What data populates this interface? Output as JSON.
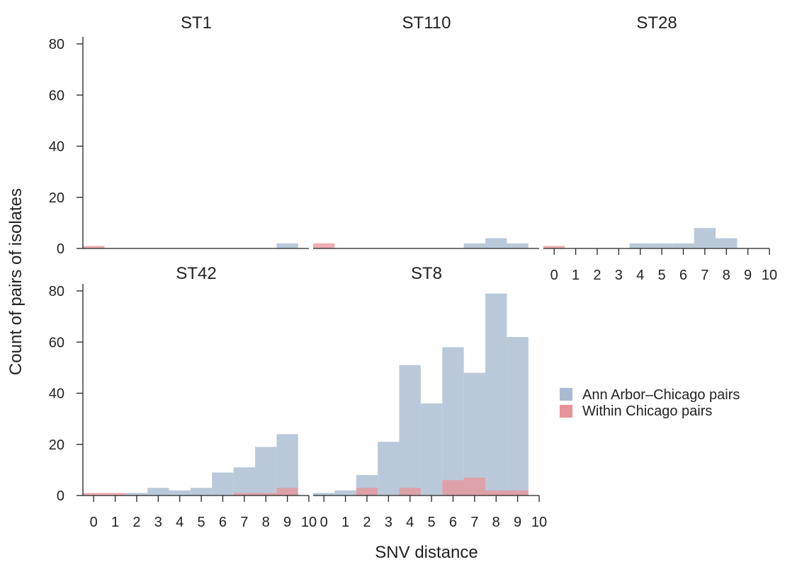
{
  "figure": {
    "ylabel": "Count of pairs of isolates",
    "xlabel": "SNV distance"
  },
  "legend": {
    "placement": "right",
    "items": [
      {
        "label": "Ann Arbor–Chicago pairs",
        "color": "#a9bbd0"
      },
      {
        "label": "Within Chicago pairs",
        "color": "#e8939a"
      }
    ]
  },
  "colors": {
    "ann_arbor_chicago": "#a9bbd0",
    "within_chicago": "#e8939a"
  },
  "chart_data": [
    {
      "type": "bar",
      "title": "ST1",
      "categories": [
        0,
        1,
        2,
        3,
        4,
        5,
        6,
        7,
        8,
        9
      ],
      "series": [
        {
          "name": "Ann Arbor–Chicago pairs",
          "values": [
            0,
            0,
            0,
            0,
            0,
            0,
            0,
            0,
            0,
            2
          ]
        },
        {
          "name": "Within Chicago pairs",
          "values": [
            1,
            0,
            0,
            0,
            0,
            0,
            0,
            0,
            0,
            0
          ]
        }
      ],
      "xlim": [
        -0.5,
        10
      ],
      "ylim": [
        0,
        80
      ],
      "grid": false
    },
    {
      "type": "bar",
      "title": "ST110",
      "categories": [
        0,
        1,
        2,
        3,
        4,
        5,
        6,
        7,
        8,
        9
      ],
      "series": [
        {
          "name": "Ann Arbor–Chicago pairs",
          "values": [
            0,
            0,
            0,
            0,
            0,
            0,
            0,
            2,
            4,
            2
          ]
        },
        {
          "name": "Within Chicago pairs",
          "values": [
            2,
            0,
            0,
            0,
            0,
            0,
            0,
            0,
            0,
            0
          ]
        }
      ],
      "xlim": [
        -0.5,
        10
      ],
      "ylim": [
        0,
        80
      ],
      "grid": false
    },
    {
      "type": "bar",
      "title": "ST28",
      "categories": [
        0,
        1,
        2,
        3,
        4,
        5,
        6,
        7,
        8,
        9
      ],
      "series": [
        {
          "name": "Ann Arbor–Chicago pairs",
          "values": [
            0,
            0,
            0,
            0,
            2,
            2,
            2,
            8,
            4,
            0
          ]
        },
        {
          "name": "Within Chicago pairs",
          "values": [
            1,
            0,
            0,
            0,
            0,
            0,
            0,
            0,
            0,
            0
          ]
        }
      ],
      "xticks": [
        0,
        1,
        2,
        3,
        4,
        5,
        6,
        7,
        8,
        9,
        10
      ],
      "xlim": [
        -0.5,
        10
      ],
      "ylim": [
        0,
        80
      ],
      "grid": false
    },
    {
      "type": "bar",
      "title": "ST42",
      "categories": [
        0,
        1,
        2,
        3,
        4,
        5,
        6,
        7,
        8,
        9
      ],
      "series": [
        {
          "name": "Ann Arbor–Chicago pairs",
          "values": [
            0,
            0,
            1,
            3,
            2,
            3,
            9,
            11,
            19,
            24
          ]
        },
        {
          "name": "Within Chicago pairs",
          "values": [
            1,
            1,
            0,
            0,
            0,
            0,
            0,
            1,
            1,
            3
          ]
        }
      ],
      "xticks": [
        0,
        1,
        2,
        3,
        4,
        5,
        6,
        7,
        8,
        9,
        10
      ],
      "xlim": [
        -0.5,
        10
      ],
      "ylim": [
        0,
        80
      ],
      "grid": false
    },
    {
      "type": "bar",
      "title": "ST8",
      "categories": [
        0,
        1,
        2,
        3,
        4,
        5,
        6,
        7,
        8,
        9
      ],
      "series": [
        {
          "name": "Ann Arbor–Chicago pairs",
          "values": [
            1,
            2,
            8,
            21,
            51,
            36,
            58,
            48,
            79,
            62
          ]
        },
        {
          "name": "Within Chicago pairs",
          "values": [
            0,
            0,
            3,
            0,
            3,
            0,
            6,
            7,
            2,
            2
          ]
        }
      ],
      "xticks": [
        0,
        1,
        2,
        3,
        4,
        5,
        6,
        7,
        8,
        9,
        10
      ],
      "xlim": [
        -0.5,
        10
      ],
      "ylim": [
        0,
        80
      ],
      "grid": false
    }
  ]
}
